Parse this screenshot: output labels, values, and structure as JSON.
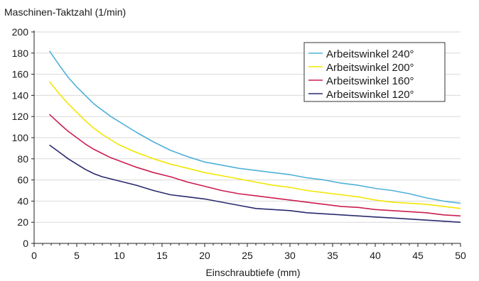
{
  "chart_data": {
    "type": "line",
    "title": "",
    "ylabel": "Maschinen-Taktzahl (1/min)",
    "xlabel": "Einschraubtiefe (mm)",
    "xlim": [
      0,
      50
    ],
    "ylim": [
      0,
      200
    ],
    "xticks": [
      0,
      5,
      10,
      15,
      20,
      25,
      30,
      35,
      40,
      45,
      50
    ],
    "yticks": [
      0,
      20,
      40,
      60,
      80,
      100,
      120,
      140,
      160,
      180,
      200
    ],
    "grid": "horizontal",
    "legend_position": "top-right",
    "series": [
      {
        "name": "Arbeitswinkel 240°",
        "color": "#4fb0d8",
        "x": [
          1.8,
          3,
          4,
          5,
          6,
          7,
          8,
          9,
          10,
          12,
          14,
          16,
          18,
          20,
          22,
          24,
          26,
          28,
          30,
          32,
          34,
          36,
          38,
          40,
          42,
          44,
          46,
          48,
          50
        ],
        "y": [
          182,
          168,
          157,
          148,
          140,
          132,
          126,
          120,
          115,
          105,
          96,
          88,
          82,
          77,
          74,
          71,
          69,
          67,
          65,
          62,
          60,
          57,
          55,
          52,
          50,
          47,
          43,
          40,
          38
        ]
      },
      {
        "name": "Arbeitswinkel 200°",
        "color": "#f2e600",
        "x": [
          1.8,
          3,
          4,
          5,
          6,
          7,
          8,
          9,
          10,
          12,
          14,
          16,
          18,
          20,
          22,
          24,
          26,
          28,
          30,
          32,
          34,
          36,
          38,
          40,
          42,
          44,
          46,
          48,
          50
        ],
        "y": [
          153,
          141,
          132,
          124,
          116,
          109,
          103,
          98,
          93,
          86,
          80,
          75,
          71,
          67,
          64,
          61,
          58,
          55,
          53,
          50,
          48,
          46,
          44,
          41,
          39,
          38,
          37,
          35,
          33
        ]
      },
      {
        "name": "Arbeitswinkel 160°",
        "color": "#cc1d4f",
        "x": [
          1.8,
          3,
          4,
          5,
          6,
          7,
          8,
          9,
          10,
          12,
          14,
          16,
          18,
          20,
          22,
          24,
          26,
          28,
          30,
          32,
          34,
          36,
          38,
          40,
          42,
          44,
          46,
          48,
          50
        ],
        "y": [
          122,
          113,
          106,
          100,
          94,
          89,
          85,
          81,
          78,
          72,
          67,
          63,
          58,
          54,
          50,
          47,
          45,
          43,
          41,
          39,
          37,
          35,
          34,
          32,
          31,
          30,
          29,
          27,
          26
        ]
      },
      {
        "name": "Arbeitswinkel 120°",
        "color": "#2a2a6e",
        "x": [
          1.8,
          3,
          4,
          5,
          6,
          7,
          8,
          9,
          10,
          12,
          14,
          16,
          18,
          20,
          22,
          24,
          26,
          28,
          30,
          32,
          34,
          36,
          38,
          40,
          42,
          44,
          46,
          48,
          50
        ],
        "y": [
          93,
          86,
          80,
          75,
          70,
          66,
          63,
          61,
          59,
          55,
          50,
          46,
          44,
          42,
          39,
          36,
          33,
          32,
          31,
          29,
          28,
          27,
          26,
          25,
          24,
          23,
          22,
          21,
          20
        ]
      }
    ]
  }
}
